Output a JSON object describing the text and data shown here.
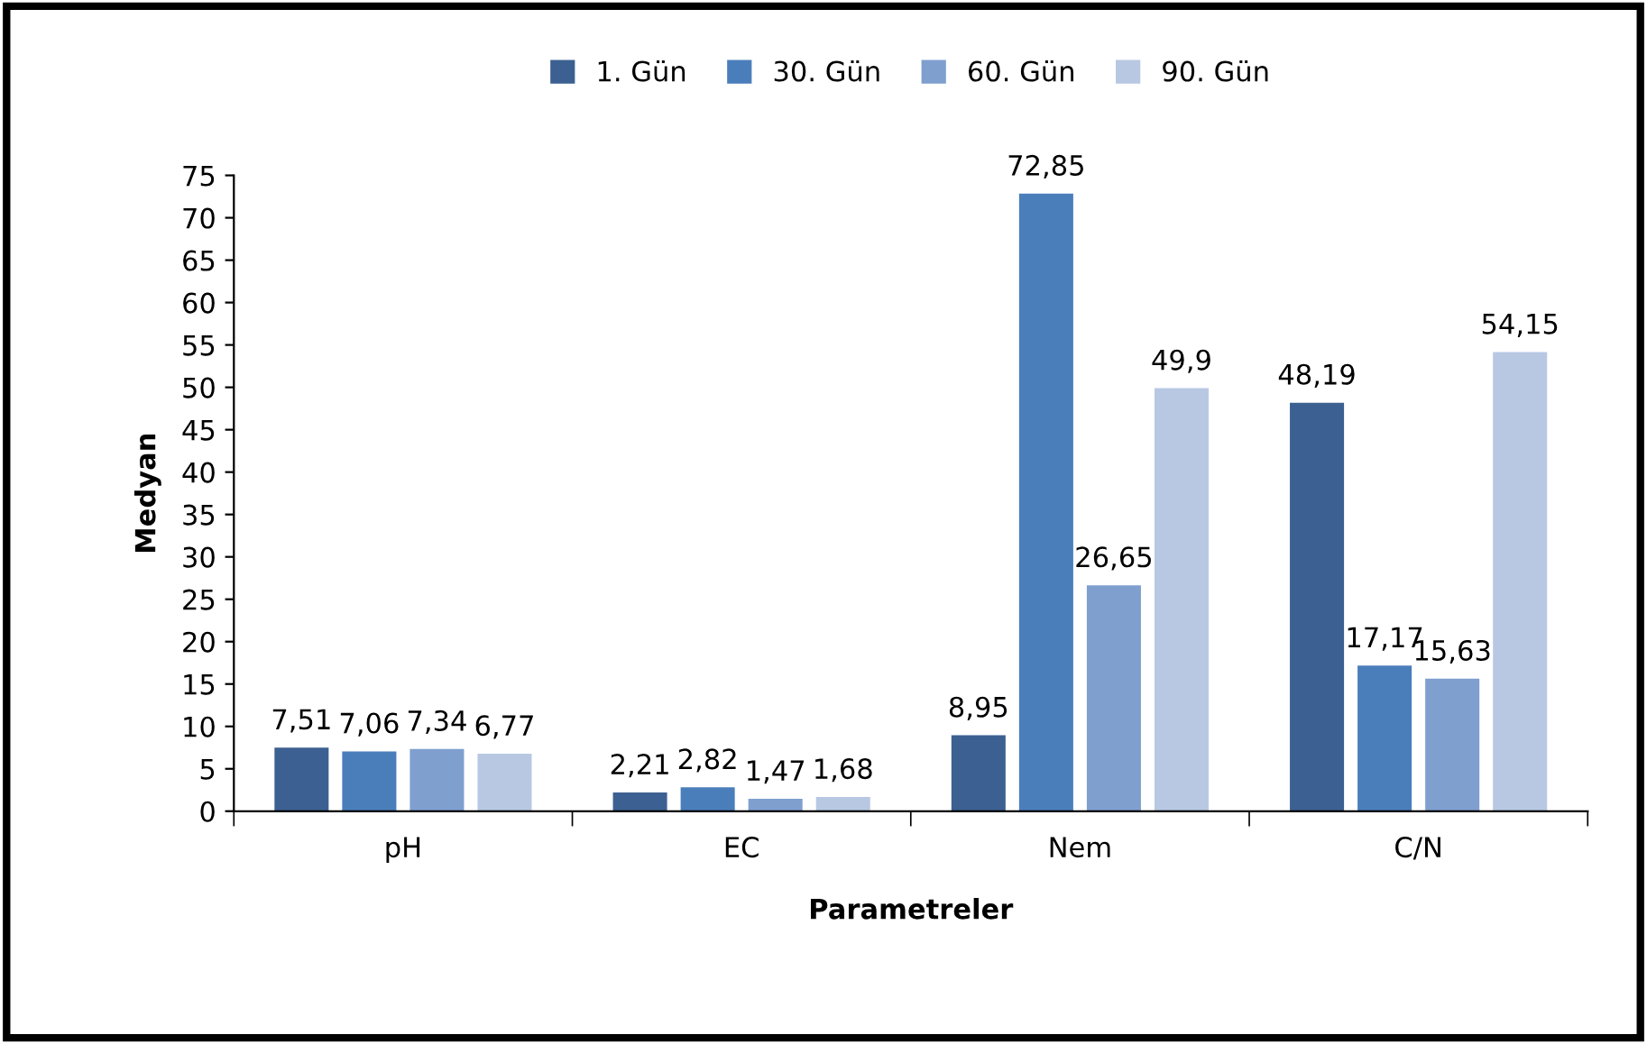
{
  "chart_data": {
    "type": "bar",
    "xlabel": "Parametreler",
    "ylabel": "Medyan",
    "categories": [
      "pH",
      "EC",
      "Nem",
      "C/N"
    ],
    "series": [
      {
        "name": "1. Gün",
        "color": "#3c6091",
        "values": [
          7.51,
          2.21,
          8.95,
          48.19
        ],
        "value_labels": [
          "7,51",
          "2,21",
          "8,95",
          "48,19"
        ]
      },
      {
        "name": "30. Gün",
        "color": "#4a7ebb",
        "values": [
          7.06,
          2.82,
          72.85,
          17.17
        ],
        "value_labels": [
          "7,06",
          "2,82",
          "72,85",
          "17,17"
        ]
      },
      {
        "name": "60. Gün",
        "color": "#7f9fcf",
        "values": [
          7.34,
          1.47,
          26.65,
          15.63
        ],
        "value_labels": [
          "7,34",
          "1,47",
          "26,65",
          "15,63"
        ]
      },
      {
        "name": "90. Gün",
        "color": "#b8c8e3",
        "values": [
          6.77,
          1.68,
          49.9,
          54.15
        ],
        "value_labels": [
          "6,77",
          "1,68",
          "49,9",
          "54,15"
        ]
      }
    ],
    "ylim": [
      0,
      75
    ],
    "yticks": [
      0,
      5,
      10,
      15,
      20,
      25,
      30,
      35,
      40,
      45,
      50,
      55,
      60,
      65,
      70,
      75
    ],
    "grid": false,
    "legend": "top"
  }
}
